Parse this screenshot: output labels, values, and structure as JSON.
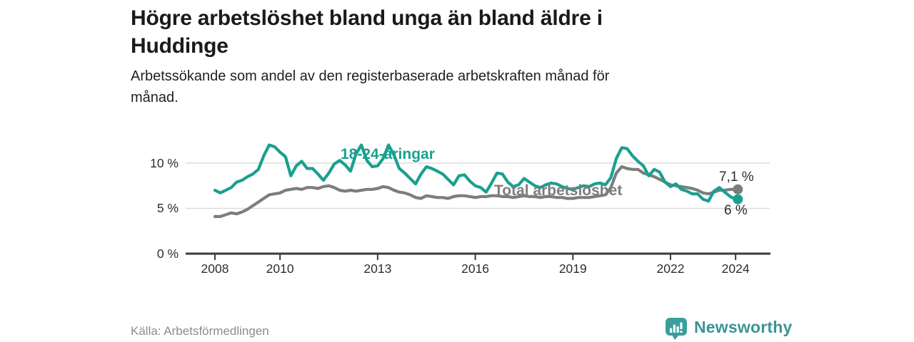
{
  "header": {
    "title": "Högre arbetslöshet bland unga än bland äldre i Huddinge",
    "title_lines": [
      "Högre arbetslöshet bland unga än bland äldre i",
      "Huddinge"
    ],
    "subtitle": "Arbetssökande som andel av den registerbaserade arbetskraften månad för månad.",
    "subtitle_lines": [
      "Arbetssökande som andel av den registerbaserade arbetskraften månad för",
      "månad."
    ]
  },
  "chart_data": {
    "type": "line",
    "title": "Högre arbetslöshet bland unga än bland äldre i Huddinge",
    "subtitle": "Arbetssökande som andel av den registerbaserade arbetskraften månad för månad.",
    "x_start": 2008,
    "points_per_year": 6,
    "xlim": [
      2007.1,
      2025.05
    ],
    "ylim": [
      0,
      13.1
    ],
    "x_ticks": [
      2008,
      2010,
      2013,
      2016,
      2019,
      2022,
      2024
    ],
    "y_ticks": [
      0,
      5,
      10
    ],
    "y_tick_suffix": " %",
    "grid": "horizontal-only",
    "legend_position": "inline-labels",
    "axis_color": "#3a3a3a",
    "grid_color": "#d9d9d9",
    "series": [
      {
        "name": "Total arbetslöshet",
        "color": "#7d7d7d",
        "end_label": "7,1 %",
        "end_value": 7.1,
        "values": [
          4.1,
          4.1,
          4.3,
          4.5,
          4.4,
          4.6,
          4.9,
          5.3,
          5.7,
          6.1,
          6.5,
          6.6,
          6.7,
          7.0,
          7.1,
          7.2,
          7.1,
          7.3,
          7.3,
          7.2,
          7.4,
          7.5,
          7.3,
          7.0,
          6.9,
          7.0,
          6.9,
          7.0,
          7.1,
          7.1,
          7.2,
          7.4,
          7.3,
          7.0,
          6.8,
          6.7,
          6.5,
          6.2,
          6.1,
          6.4,
          6.3,
          6.2,
          6.2,
          6.1,
          6.3,
          6.4,
          6.4,
          6.3,
          6.2,
          6.3,
          6.3,
          6.4,
          6.4,
          6.3,
          6.3,
          6.2,
          6.3,
          6.4,
          6.3,
          6.3,
          6.2,
          6.3,
          6.3,
          6.2,
          6.2,
          6.1,
          6.1,
          6.2,
          6.2,
          6.2,
          6.3,
          6.4,
          6.5,
          7.3,
          8.9,
          9.6,
          9.4,
          9.3,
          9.3,
          8.9,
          8.7,
          8.5,
          8.2,
          7.9,
          7.6,
          7.5,
          7.4,
          7.3,
          7.2,
          7.0,
          6.7,
          6.6,
          6.8,
          7.0,
          7.0,
          7.1,
          7.1
        ]
      },
      {
        "name": "18-24-åringar",
        "color": "#1aa08f",
        "end_label": "6 %",
        "end_value": 6.0,
        "values": [
          7.0,
          6.7,
          7.0,
          7.3,
          7.9,
          8.1,
          8.5,
          8.8,
          9.3,
          10.8,
          12.0,
          11.8,
          11.2,
          10.7,
          8.6,
          9.7,
          10.2,
          9.4,
          9.4,
          8.8,
          8.1,
          8.9,
          9.9,
          10.3,
          9.8,
          9.1,
          11.0,
          12.0,
          10.3,
          9.6,
          9.7,
          10.5,
          12.0,
          10.9,
          9.4,
          8.9,
          8.3,
          7.7,
          8.8,
          9.6,
          9.4,
          9.1,
          8.8,
          8.2,
          7.6,
          8.6,
          8.7,
          8.0,
          7.5,
          7.3,
          6.8,
          7.8,
          8.9,
          8.8,
          7.9,
          7.4,
          7.6,
          8.3,
          7.9,
          7.5,
          7.3,
          7.6,
          7.8,
          7.7,
          7.4,
          7.2,
          7.1,
          7.3,
          7.5,
          7.4,
          7.7,
          7.8,
          7.6,
          8.4,
          10.5,
          11.7,
          11.6,
          10.8,
          10.2,
          9.7,
          8.6,
          9.3,
          9.0,
          7.9,
          7.4,
          7.7,
          7.1,
          6.9,
          6.6,
          6.6,
          6.0,
          5.8,
          6.9,
          7.3,
          6.8,
          6.3,
          6.0
        ]
      }
    ]
  },
  "footer": {
    "source": "Källa: Arbetsförmedlingen",
    "brand": "Newsworthy",
    "logo_icon": "bar-chart-speech-bubble"
  },
  "colors": {
    "young_series": "#1aa08f",
    "total_series": "#7d7d7d",
    "brand_teal": "#3b9595",
    "axis": "#3a3a3a",
    "grid": "#d9d9d9"
  }
}
